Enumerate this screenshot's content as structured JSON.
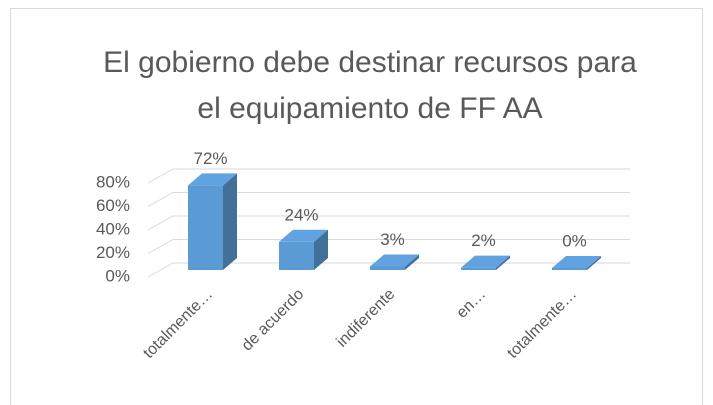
{
  "chart_data": {
    "type": "bar3d",
    "title": "El gobierno debe destinar recursos para el equipamiento de FF AA",
    "categories": [
      "totalmente…",
      "de acuerdo",
      "indiferente",
      "en…",
      "totalmente…"
    ],
    "values": [
      72,
      24,
      3,
      2,
      0
    ],
    "value_labels": [
      "72%",
      "24%",
      "3%",
      "2%",
      "0%"
    ],
    "color": "#5b9bd5",
    "ylim": [
      0,
      80
    ],
    "yticks": [
      {
        "value": 0,
        "label": "0%"
      },
      {
        "value": 20,
        "label": "20%"
      },
      {
        "value": 40,
        "label": "40%"
      },
      {
        "value": 60,
        "label": "60%"
      },
      {
        "value": 80,
        "label": "80%"
      }
    ],
    "grid": true
  }
}
